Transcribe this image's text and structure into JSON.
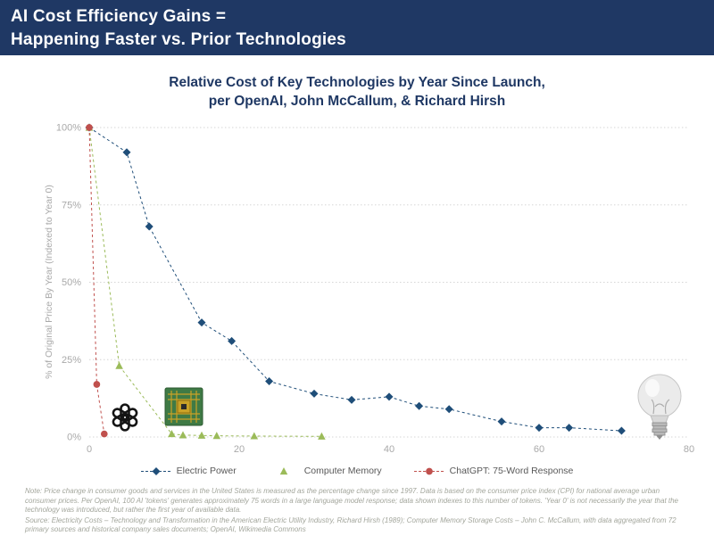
{
  "header": {
    "line1": "AI Cost Efficiency Gains =",
    "line2": "Happening Faster vs. Prior Technologies"
  },
  "chart": {
    "title_line1": "Relative Cost of Key Technologies by Year Since Launch,",
    "title_line2": "per OpenAI, John McCallum, & Richard Hirsh"
  },
  "colors": {
    "header_background": "#1F3864",
    "title_text": "#1F3864",
    "electric_power": "#1F4E79",
    "computer_memory": "#9BBB59",
    "chatgpt": "#C0504D",
    "axis_text": "#A9A9A9",
    "gridline": "#D6D6D6"
  },
  "icons": {
    "openai_logo": "openai-logo-icon",
    "memory_chip": "memory-chip-icon",
    "light_bulb": "light-bulb-icon"
  },
  "chart_data": {
    "type": "line",
    "title": "Relative Cost of Key Technologies by Year Since Launch, per OpenAI, John McCallum, & Richard Hirsh",
    "xlabel": "",
    "ylabel": "% of Original Price By Year (Indexed to Year 0)",
    "xlim": [
      0,
      80
    ],
    "ylim": [
      0,
      100
    ],
    "x_ticks": [
      0,
      20,
      40,
      60,
      80
    ],
    "y_ticks": [
      "0%",
      "25%",
      "50%",
      "75%",
      "100%"
    ],
    "grid": "horizontal-dotted",
    "legend_position": "bottom",
    "series": [
      {
        "name": "Electric Power",
        "color": "#1F4E79",
        "marker": "diamond",
        "line_style": "dashed",
        "points": [
          [
            0,
            100
          ],
          [
            5,
            92
          ],
          [
            8,
            68
          ],
          [
            15,
            37
          ],
          [
            19,
            31
          ],
          [
            24,
            18
          ],
          [
            30,
            14
          ],
          [
            35,
            12
          ],
          [
            40,
            13
          ],
          [
            44,
            10
          ],
          [
            48,
            9
          ],
          [
            55,
            5
          ],
          [
            60,
            3
          ],
          [
            64,
            3
          ],
          [
            71,
            2
          ]
        ]
      },
      {
        "name": "Computer Memory",
        "color": "#9BBB59",
        "marker": "triangle",
        "line_style": "dashed",
        "points": [
          [
            0,
            100
          ],
          [
            4,
            23
          ],
          [
            11,
            1
          ],
          [
            12.5,
            0.6
          ],
          [
            15,
            0.5
          ],
          [
            17,
            0.4
          ],
          [
            22,
            0.3
          ],
          [
            31,
            0.2
          ]
        ]
      },
      {
        "name": "ChatGPT: 75-Word Response",
        "color": "#C0504D",
        "marker": "circle",
        "line_style": "dashed",
        "points": [
          [
            0,
            100
          ],
          [
            1,
            17
          ],
          [
            2,
            1
          ]
        ]
      }
    ]
  },
  "footnotes": {
    "note": "Note: Price change in consumer goods and services in the United States is measured as the percentage change since 1997. Data is based on the consumer price index (CPI) for national average urban consumer prices. Per OpenAI, 100 AI 'tokens' generates approximately 75 words in a large language model response; data shown indexes to this number of tokens. 'Year 0' is not necessarily the year that the technology was introduced, but rather the first year of available data.",
    "source": "Source: Electricity Costs – Technology and Transformation in the American Electric Utility Industry, Richard Hirsh (1989); Computer Memory Storage Costs – John C. McCallum, with data aggregated from 72 primary sources and historical company sales documents; OpenAI, Wikimedia Commons"
  }
}
